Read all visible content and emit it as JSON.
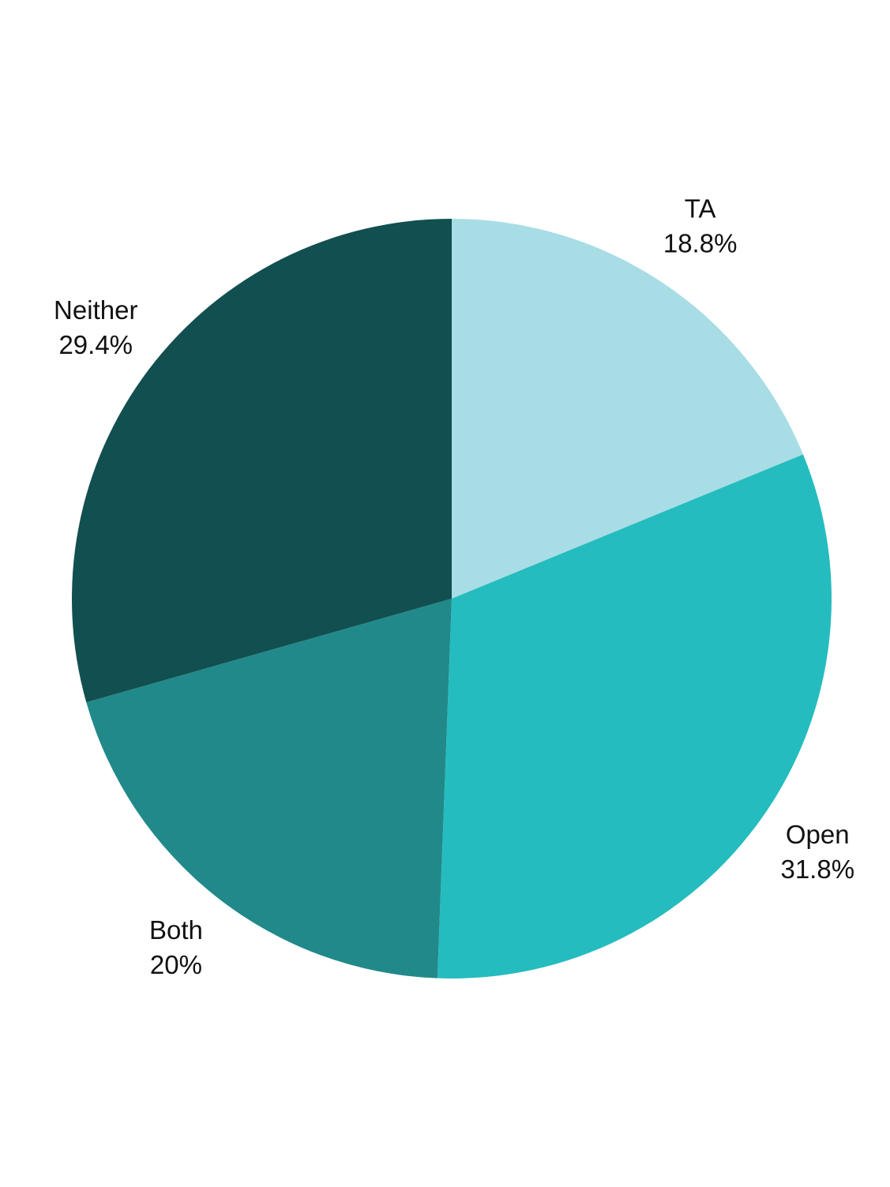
{
  "chart_data": {
    "type": "pie",
    "categories": [
      "TA",
      "Open",
      "Both",
      "Neither"
    ],
    "values": [
      18.8,
      31.8,
      20,
      29.4
    ],
    "value_labels": [
      "18.8%",
      "31.8%",
      "20%",
      "29.4%"
    ],
    "colors": [
      "#a8dde5",
      "#25bcbf",
      "#21898a",
      "#124f50"
    ]
  }
}
